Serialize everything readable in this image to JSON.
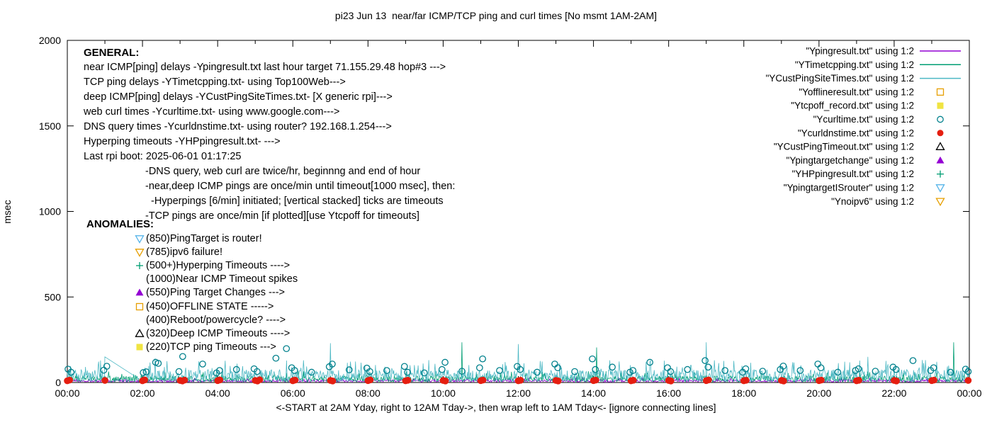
{
  "title": "pi23 Jun 13  near/far ICMP/TCP ping and curl times [No msmt 1AM-2AM]",
  "axes": {
    "ylabel": "msec",
    "xlabel": "<-START at 2AM Yday, right to 12AM Tday->, then wrap left to 1AM Tday<- [ignore connecting lines]",
    "yticks": [
      0,
      500,
      1000,
      1500,
      2000
    ],
    "xticks": [
      "00:00",
      "02:00",
      "04:00",
      "06:00",
      "08:00",
      "10:00",
      "12:00",
      "14:00",
      "16:00",
      "18:00",
      "20:00",
      "22:00",
      "00:00"
    ]
  },
  "legend": [
    {
      "label": "\"Ypingresult.txt\" using 1:2",
      "type": "line",
      "color": "#9400D3"
    },
    {
      "label": "\"YTimetcpping.txt\" using 1:2",
      "type": "line",
      "color": "#009E73"
    },
    {
      "label": "\"YCustPingSiteTimes.txt\" using 1:2",
      "type": "line",
      "color": "#4DB8C4"
    },
    {
      "label": "\"Yofflineresult.txt\" using 1:2",
      "type": "square-open",
      "color": "#E69F00"
    },
    {
      "label": "\"Ytcpoff_record.txt\" using 1:2",
      "type": "square-filled",
      "color": "#F0E442"
    },
    {
      "label": "\"Ycurltime.txt\" using 1:2",
      "type": "circle-open",
      "color": "#00808C"
    },
    {
      "label": "\"Ycurldnstime.txt\" using 1:2",
      "type": "circle-filled",
      "color": "#E51E10"
    },
    {
      "label": "\"YCustPingTimeout.txt\" using 1:2",
      "type": "triangle-up-open",
      "color": "#000000"
    },
    {
      "label": "\"Ypingtargetchange\" using 1:2",
      "type": "triangle-up-filled",
      "color": "#9400D3"
    },
    {
      "label": "\"YHPpingresult.txt\" using 1:2",
      "type": "plus",
      "color": "#009E73"
    },
    {
      "label": "\"YpingtargetISrouter\" using 1:2",
      "type": "triangle-down-open",
      "color": "#56B4E9"
    },
    {
      "label": "\"Ynoipv6\" using 1:2",
      "type": "triangle-down-open",
      "color": "#E69F00"
    }
  ],
  "general": {
    "heading": "GENERAL:",
    "lines": [
      {
        "text": "near ICMP[ping] delays -Ypingresult.txt last hour target 71.155.29.48 hop#3 --->",
        "indent": 0
      },
      {
        "text": "TCP ping delays -YTimetcpping.txt- using Top100Web--->",
        "indent": 0
      },
      {
        "text": "deep ICMP[ping] delays -YCustPingSiteTimes.txt- [X generic rpi]--->",
        "indent": 0
      },
      {
        "text": "web curl times -Ycurltime.txt- using www.google.com--->",
        "indent": 0
      },
      {
        "text": "DNS query times -Ycurldnstime.txt- using router? 192.168.1.254--->",
        "indent": 0
      },
      {
        "text": "Hyperping timeouts -YHPpingresult.txt- --->",
        "indent": 0
      },
      {
        "text": "Last rpi boot: 2025-06-01 01:17:25",
        "indent": 0
      },
      {
        "text": "-DNS query, web curl are twice/hr, beginnng and end of hour",
        "indent": 1
      },
      {
        "text": "-near,deep ICMP pings are once/min until timeout[1000 msec], then:",
        "indent": 1
      },
      {
        "text": "-Hyperpings [6/min] initiated; [vertical stacked] ticks are timeouts",
        "indent": 2
      },
      {
        "text": "-TCP pings are once/min [if plotted][use Ytcpoff for timeouts]",
        "indent": 1
      }
    ]
  },
  "anomalies": {
    "heading": "ANOMALIES:",
    "items": [
      {
        "marker": "triangle-down-open",
        "color": "#56B4E9",
        "label": "(850)PingTarget is router!"
      },
      {
        "marker": "triangle-down-open",
        "color": "#E69F00",
        "label": "(785)ipv6 failure!"
      },
      {
        "marker": "plus",
        "color": "#009E73",
        "label": "(500+)Hyperping Timeouts ---->"
      },
      {
        "marker": "",
        "color": "",
        "label": "(1000)Near ICMP Timeout spikes"
      },
      {
        "marker": "triangle-up-filled",
        "color": "#9400D3",
        "label": "(550)Ping Target Changes --->"
      },
      {
        "marker": "square-open",
        "color": "#E69F00",
        "label": "(450)OFFLINE STATE ----->"
      },
      {
        "marker": "",
        "color": "",
        "label": "(400)Reboot/powercycle? ---->"
      },
      {
        "marker": "triangle-up-open",
        "color": "#000000",
        "label": "(320)Deep ICMP Timeouts ---->"
      },
      {
        "marker": "square-filled",
        "color": "#F0E442",
        "label": "(220)TCP ping Timeouts --->"
      }
    ]
  },
  "chart_data": {
    "type": "line",
    "title": "pi23 Jun 13  near/far ICMP/TCP ping and curl times [No msmt 1AM-2AM]",
    "xlabel": "<-START at 2AM Yday, right to 12AM Tday->, then wrap left to 1AM Tday<- [ignore connecting lines]",
    "ylabel": "msec",
    "xlim_hours": [
      0,
      24
    ],
    "ylim": [
      0,
      2000
    ],
    "legend_position": "top-right-inside",
    "grid": false,
    "series": [
      {
        "id": "near_icmp",
        "name": "Ypingresult.txt (near ICMP ping delays, once/min)",
        "type": "line",
        "color": "#9400D3",
        "noise_band_msec": [
          2,
          16
        ]
      },
      {
        "id": "tcp_ping",
        "name": "YTimetcpping.txt (TCP ping delays, once/min)",
        "type": "line",
        "color": "#009E73",
        "noise_band_msec": [
          3,
          38
        ],
        "spikes_hour_msec": [
          [
            10.5,
            235
          ],
          [
            14.08,
            205
          ],
          [
            23.58,
            235
          ]
        ]
      },
      {
        "id": "deep_icmp",
        "name": "YCustPingSiteTimes.txt (deep ICMP ping delays, once/min)",
        "type": "line",
        "color": "#4DB8C4",
        "noise_band_msec": [
          5,
          75
        ],
        "spikes_hour_msec": [
          [
            2.33,
            140
          ],
          [
            7.0,
            230
          ],
          [
            12.0,
            225
          ],
          [
            17.0,
            235
          ],
          [
            21.3,
            150
          ]
        ],
        "gap_hours": [
          1,
          2
        ]
      },
      {
        "id": "web_curl",
        "name": "Ycurltime.txt (web curl times, twice/hr)",
        "type": "scatter",
        "marker": "circle-open",
        "color": "#00808C",
        "points_hour_msec": [
          [
            0.02,
            78
          ],
          [
            0.1,
            60
          ],
          [
            0.97,
            72
          ],
          [
            1.05,
            95
          ],
          [
            2.02,
            58
          ],
          [
            2.1,
            62
          ],
          [
            2.35,
            118
          ],
          [
            2.42,
            112
          ],
          [
            2.97,
            64
          ],
          [
            3.07,
            152
          ],
          [
            3.6,
            108
          ],
          [
            3.97,
            56
          ],
          [
            4.05,
            70
          ],
          [
            4.5,
            76
          ],
          [
            4.97,
            80
          ],
          [
            5.05,
            64
          ],
          [
            5.55,
            142
          ],
          [
            5.83,
            198
          ],
          [
            5.97,
            86
          ],
          [
            6.05,
            70
          ],
          [
            6.5,
            60
          ],
          [
            6.97,
            92
          ],
          [
            7.05,
            108
          ],
          [
            7.5,
            74
          ],
          [
            7.97,
            84
          ],
          [
            8.05,
            64
          ],
          [
            8.5,
            70
          ],
          [
            8.97,
            94
          ],
          [
            9.05,
            60
          ],
          [
            9.5,
            56
          ],
          [
            9.97,
            76
          ],
          [
            10.05,
            118
          ],
          [
            10.5,
            66
          ],
          [
            10.97,
            86
          ],
          [
            11.05,
            138
          ],
          [
            11.5,
            70
          ],
          [
            11.97,
            94
          ],
          [
            12.05,
            76
          ],
          [
            12.5,
            60
          ],
          [
            12.97,
            108
          ],
          [
            13.05,
            86
          ],
          [
            13.5,
            64
          ],
          [
            13.97,
            138
          ],
          [
            14.05,
            76
          ],
          [
            14.5,
            90
          ],
          [
            14.97,
            60
          ],
          [
            15.05,
            70
          ],
          [
            15.5,
            118
          ],
          [
            15.97,
            86
          ],
          [
            16.05,
            64
          ],
          [
            16.5,
            76
          ],
          [
            16.97,
            128
          ],
          [
            17.05,
            90
          ],
          [
            17.5,
            70
          ],
          [
            17.97,
            60
          ],
          [
            18.05,
            80
          ],
          [
            18.5,
            66
          ],
          [
            18.97,
            76
          ],
          [
            19.05,
            96
          ],
          [
            19.5,
            70
          ],
          [
            19.97,
            108
          ],
          [
            20.05,
            86
          ],
          [
            20.5,
            60
          ],
          [
            20.97,
            70
          ],
          [
            21.05,
            80
          ],
          [
            21.5,
            66
          ],
          [
            21.97,
            90
          ],
          [
            22.05,
            76
          ],
          [
            22.5,
            128
          ],
          [
            22.97,
            70
          ],
          [
            23.05,
            86
          ],
          [
            23.5,
            60
          ],
          [
            23.9,
            78
          ],
          [
            23.97,
            64
          ]
        ]
      },
      {
        "id": "dns",
        "name": "Ycurldnstime.txt (DNS query times, twice/hr)",
        "type": "scatter",
        "marker": "circle-filled",
        "color": "#E51E10",
        "points_hour_msec": [
          [
            0.0,
            10
          ],
          [
            0.06,
            14
          ],
          [
            1.0,
            12
          ],
          [
            2.0,
            10
          ],
          [
            2.06,
            15
          ],
          [
            3.0,
            12
          ],
          [
            3.06,
            9
          ],
          [
            3.12,
            14
          ],
          [
            4.0,
            11
          ],
          [
            4.06,
            15
          ],
          [
            5.0,
            12
          ],
          [
            5.06,
            9
          ],
          [
            5.12,
            16
          ],
          [
            6.0,
            10
          ],
          [
            6.06,
            14
          ],
          [
            7.0,
            12
          ],
          [
            7.06,
            9
          ],
          [
            8.0,
            11
          ],
          [
            8.06,
            15
          ],
          [
            9.0,
            10
          ],
          [
            9.06,
            13
          ],
          [
            10.0,
            12
          ],
          [
            10.06,
            9
          ],
          [
            11.0,
            11
          ],
          [
            11.06,
            14
          ],
          [
            12.0,
            10
          ],
          [
            12.06,
            13
          ],
          [
            13.0,
            12
          ],
          [
            13.06,
            9
          ],
          [
            14.0,
            11
          ],
          [
            14.06,
            14
          ],
          [
            15.0,
            10
          ],
          [
            15.06,
            13
          ],
          [
            16.0,
            12
          ],
          [
            16.06,
            9
          ],
          [
            17.0,
            11
          ],
          [
            17.06,
            15
          ],
          [
            18.0,
            10
          ],
          [
            18.06,
            13
          ],
          [
            19.0,
            12
          ],
          [
            19.06,
            9
          ],
          [
            20.0,
            11
          ],
          [
            20.06,
            14
          ],
          [
            21.0,
            10
          ],
          [
            21.06,
            13
          ],
          [
            22.0,
            12
          ],
          [
            22.06,
            9
          ],
          [
            23.0,
            11
          ],
          [
            23.06,
            14
          ],
          [
            23.97,
            12
          ]
        ]
      }
    ]
  }
}
